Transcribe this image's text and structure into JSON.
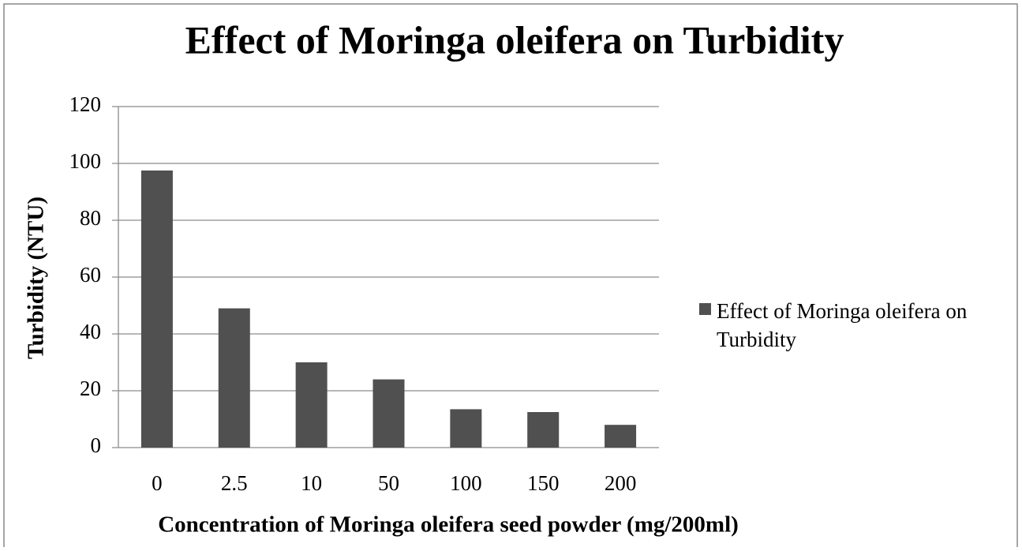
{
  "chart_data": {
    "type": "bar",
    "title": "Effect of Moringa oleifera on Turbidity",
    "x_label": "Concentration of Moringa oleifera  seed powder (mg/200ml)",
    "y_label": "Turbidity  (NTU)",
    "categories": [
      "0",
      "2.5",
      "10",
      "50",
      "100",
      "150",
      "200"
    ],
    "series": [
      {
        "name": "Effect of Moringa oleifera on Turbidity",
        "color": "#505050",
        "values": [
          97.5,
          49,
          30,
          24,
          13.5,
          12.5,
          8
        ]
      }
    ],
    "ylim": [
      0,
      120
    ],
    "yticks": [
      0,
      20,
      40,
      60,
      80,
      100,
      120
    ],
    "grid": true,
    "legend": "right"
  }
}
